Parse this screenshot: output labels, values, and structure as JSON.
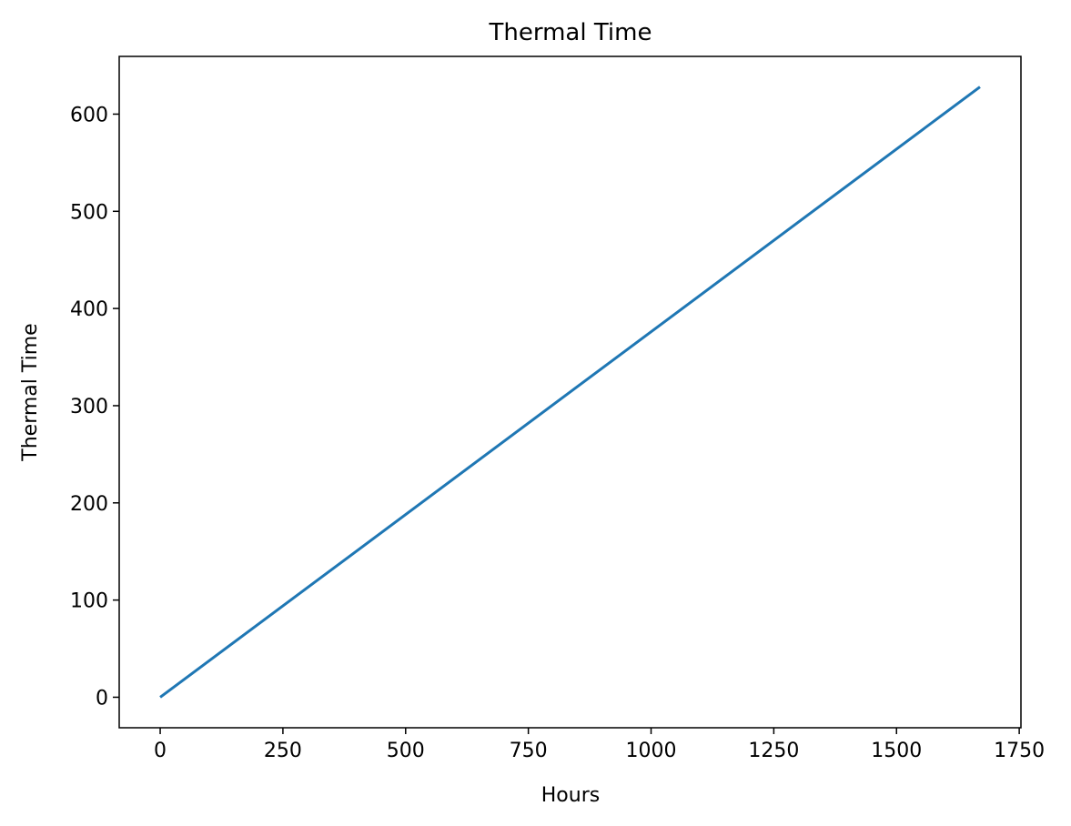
{
  "chart_data": {
    "type": "line",
    "title": "Thermal Time",
    "xlabel": "Hours",
    "ylabel": "Thermal Time",
    "xlim": [
      -83.5,
      1753.5
    ],
    "ylim": [
      -31.4,
      659.4
    ],
    "xticks": [
      0,
      250,
      500,
      750,
      1000,
      1250,
      1500,
      1750
    ],
    "yticks": [
      0,
      100,
      200,
      300,
      400,
      500,
      600
    ],
    "grid": false,
    "series": [
      {
        "color": "#1f77b4",
        "x": [
          0,
          1670
        ],
        "y": [
          0,
          628
        ]
      }
    ]
  }
}
